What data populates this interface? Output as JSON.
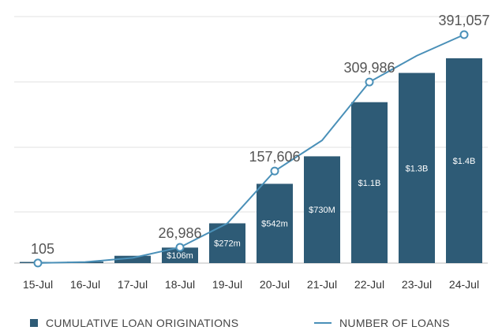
{
  "chart_data": {
    "type": "bar",
    "categories": [
      "15-Jul",
      "16-Jul",
      "17-Jul",
      "18-Jul",
      "19-Jul",
      "20-Jul",
      "21-Jul",
      "22-Jul",
      "23-Jul",
      "24-Jul"
    ],
    "series": [
      {
        "name": "CUMULATIVE LOAN ORIGINATIONS",
        "type": "bar",
        "values": [
          0.002,
          0.01,
          0.05,
          0.106,
          0.272,
          0.542,
          0.73,
          1.1,
          1.3,
          1.4
        ],
        "unit": "$B",
        "data_labels": [
          "",
          "",
          "",
          "$106m",
          "$272m",
          "$542m",
          "$730M",
          "$1.1B",
          "$1.3B",
          "$1.4B"
        ],
        "color": "#2e5b76"
      },
      {
        "name": "NUMBER OF LOANS",
        "type": "line",
        "values": [
          105,
          1800,
          9000,
          26986,
          68000,
          157606,
          210000,
          309986,
          355000,
          391057
        ],
        "data_labels": [
          "105",
          "",
          "",
          "26,986",
          "",
          "157,606",
          "",
          "309,986",
          "",
          "391,057"
        ],
        "color": "#4a90b8"
      }
    ],
    "grid": true,
    "legend": "bottom",
    "title": "",
    "xlabel": "",
    "ylabel": ""
  }
}
